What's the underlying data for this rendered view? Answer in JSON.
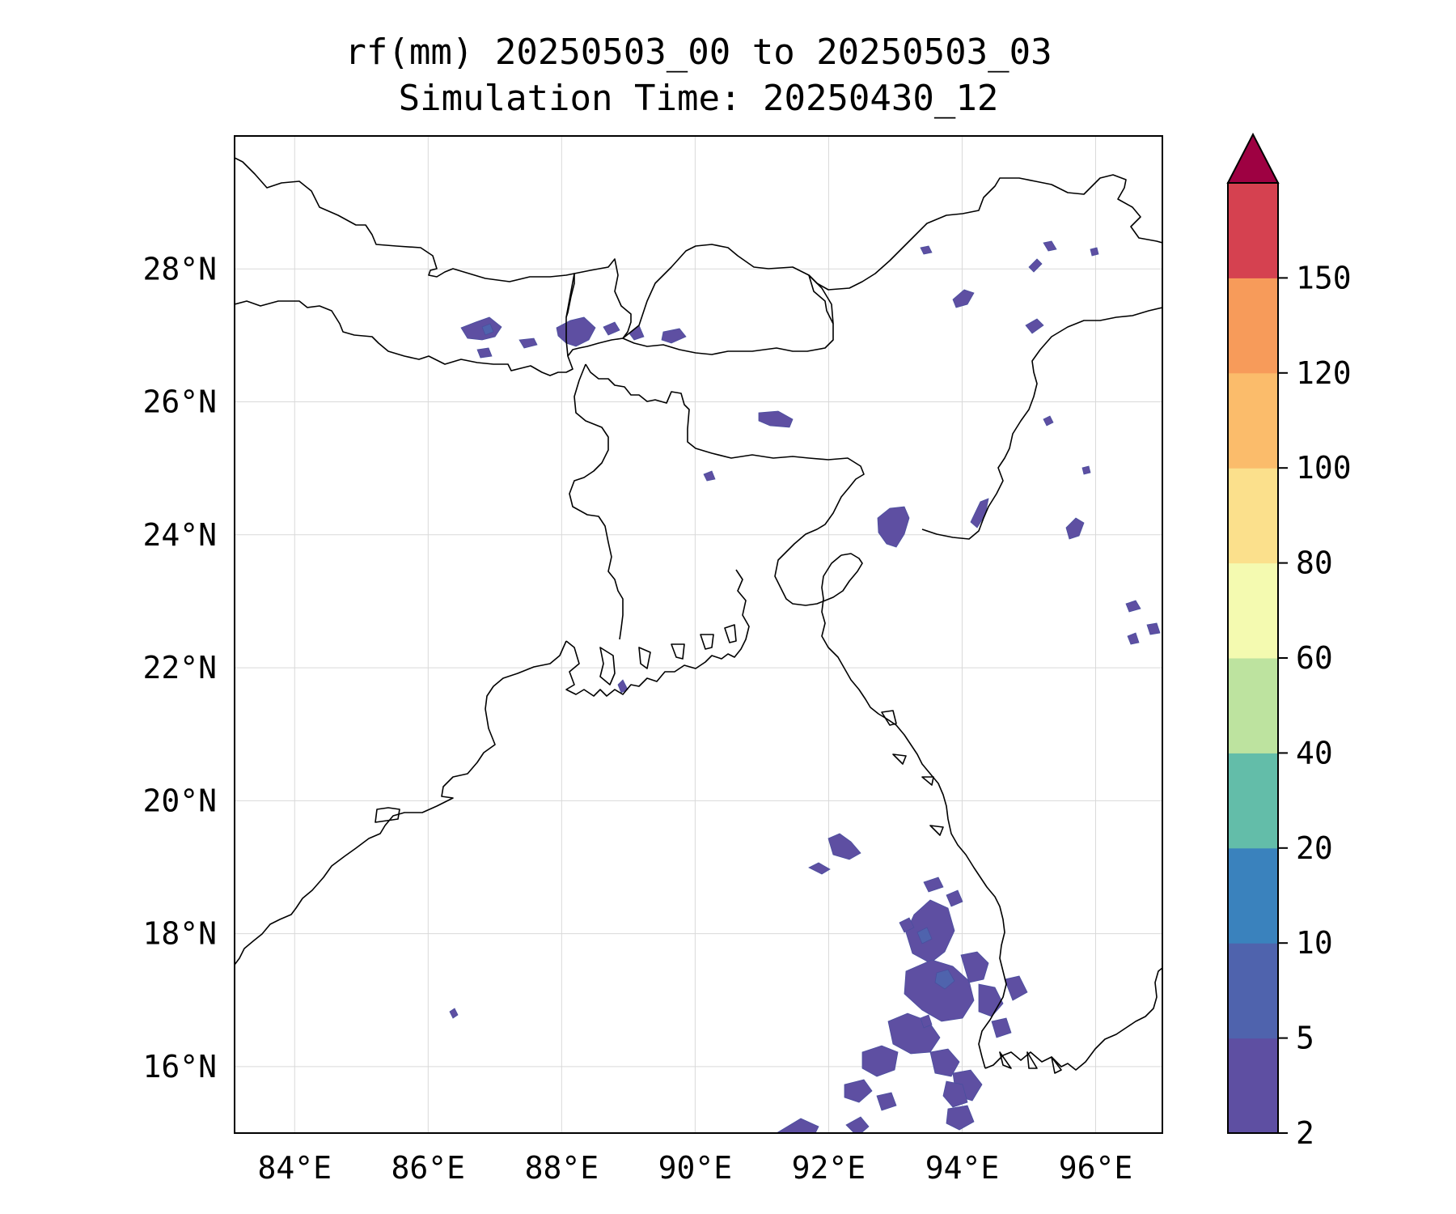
{
  "title": {
    "line1": "rf(mm) 20250503_00 to 20250503_03",
    "line2": "Simulation Time: 20250430_12"
  },
  "map": {
    "projection": "PlateCarree",
    "lon_range": [
      83.1,
      97.0
    ],
    "lat_range": [
      15.0,
      30.0
    ],
    "gridlines": true,
    "lon_ticks": [
      {
        "value": 84,
        "label": "84°E"
      },
      {
        "value": 86,
        "label": "86°E"
      },
      {
        "value": 88,
        "label": "88°E"
      },
      {
        "value": 90,
        "label": "90°E"
      },
      {
        "value": 92,
        "label": "92°E"
      },
      {
        "value": 94,
        "label": "94°E"
      },
      {
        "value": 96,
        "label": "96°E"
      }
    ],
    "lat_ticks": [
      {
        "value": 16,
        "label": "16°N"
      },
      {
        "value": 18,
        "label": "18°N"
      },
      {
        "value": 20,
        "label": "20°N"
      },
      {
        "value": 22,
        "label": "22°N"
      },
      {
        "value": 24,
        "label": "24°N"
      },
      {
        "value": 26,
        "label": "26°N"
      },
      {
        "value": 28,
        "label": "28°N"
      }
    ],
    "rain_color_main": "#5e4fa2",
    "rain_color_highlight": "#3288bd"
  },
  "colorbar": {
    "levels": [
      "2",
      "5",
      "10",
      "20",
      "40",
      "60",
      "80",
      "100",
      "120",
      "150"
    ],
    "colors": [
      "#5e4fa2",
      "#4f63ad",
      "#3a82bd",
      "#63bda9",
      "#bde39f",
      "#f4fab0",
      "#fbe08c",
      "#fbbc6b",
      "#f79b5a",
      "#d54150"
    ],
    "extend_color": "#9e0142",
    "extend": "max"
  }
}
